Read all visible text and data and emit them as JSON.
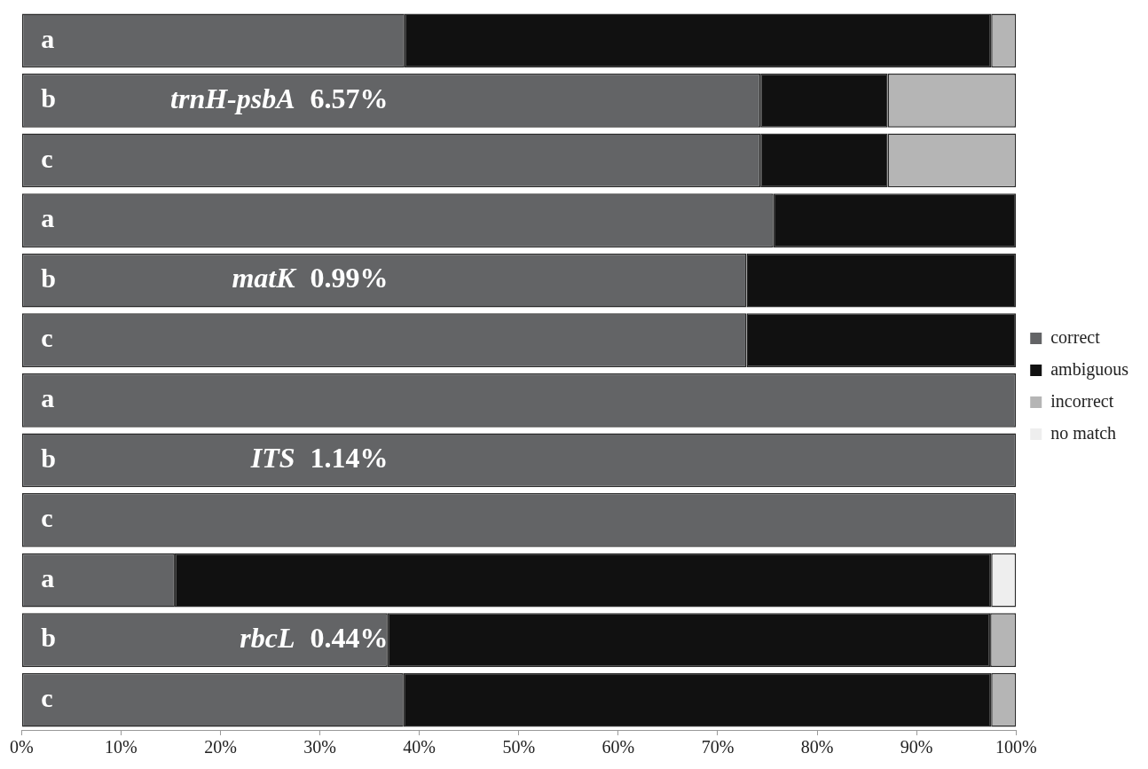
{
  "chart_data": {
    "type": "bar",
    "orientation": "horizontal",
    "stacked": true,
    "categories": [
      "a",
      "b",
      "c",
      "a",
      "b",
      "c",
      "a",
      "b",
      "c",
      "a",
      "b",
      "c"
    ],
    "series": [
      {
        "name": "correct",
        "color": "#636466",
        "values": [
          38.5,
          74.3,
          74.3,
          75.6,
          72.9,
          72.9,
          100,
          100,
          100,
          15.4,
          36.8,
          38.4
        ]
      },
      {
        "name": "ambiguous",
        "color": "#111111",
        "values": [
          59.0,
          12.8,
          12.8,
          24.4,
          27.1,
          27.1,
          0,
          0,
          0,
          82.1,
          60.6,
          59.1
        ]
      },
      {
        "name": "incorrect",
        "color": "#b5b5b5",
        "values": [
          2.5,
          12.9,
          12.9,
          0,
          0,
          0,
          0,
          0,
          0,
          0,
          2.6,
          2.5
        ]
      },
      {
        "name": "no match",
        "color": "#eeeeee",
        "values": [
          0,
          0,
          0,
          0,
          0,
          0,
          0,
          0,
          0,
          2.5,
          0,
          0
        ]
      }
    ],
    "xlim": [
      0,
      100
    ],
    "xticks": [
      {
        "value": 0,
        "label": "0%"
      },
      {
        "value": 10,
        "label": "10%"
      },
      {
        "value": 20,
        "label": "20%"
      },
      {
        "value": 30,
        "label": "30%"
      },
      {
        "value": 40,
        "label": "40%"
      },
      {
        "value": 50,
        "label": "50%"
      },
      {
        "value": 60,
        "label": "60%"
      },
      {
        "value": 70,
        "label": "70%"
      },
      {
        "value": 80,
        "label": "80%"
      },
      {
        "value": 90,
        "label": "90%"
      },
      {
        "value": 100,
        "label": "100%"
      }
    ],
    "annotations": [
      "trnH-psbA",
      "6.57%",
      "matK",
      "0.99%",
      "ITS",
      "1.14%",
      "rbcL",
      "0.44%"
    ],
    "legend": "right",
    "grid": false
  }
}
